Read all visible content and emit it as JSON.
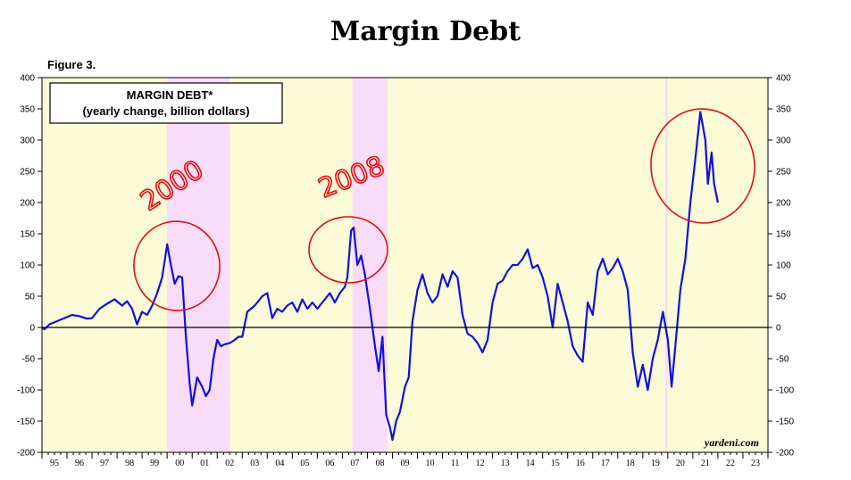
{
  "title": "Margin Debt",
  "figure_label": "Figure 3.",
  "legend": {
    "line1": "MARGIN DEBT*",
    "line2": "(yearly change, billion dollars)"
  },
  "source": "yardeni.com",
  "annotations": [
    "2000",
    "2008"
  ],
  "colors": {
    "background": "#fbfbd8",
    "recession": "#f9dcf7",
    "line": "#1010e0",
    "annotation": "#e01010"
  },
  "chart_data": {
    "type": "line",
    "title": "MARGIN DEBT*",
    "subtitle": "(yearly change, billion dollars)",
    "xlabel": "",
    "ylabel": "",
    "xlim": [
      1995,
      2024
    ],
    "ylim": [
      -200,
      400
    ],
    "y_ticks": [
      400,
      350,
      300,
      250,
      200,
      150,
      100,
      50,
      0,
      -50,
      -100,
      -150,
      -200
    ],
    "x_tick_labels": [
      "95",
      "96",
      "97",
      "98",
      "99",
      "00",
      "01",
      "02",
      "03",
      "04",
      "05",
      "06",
      "07",
      "08",
      "09",
      "10",
      "11",
      "12",
      "13",
      "14",
      "15",
      "16",
      "17",
      "18",
      "19",
      "20",
      "21",
      "22",
      "23"
    ],
    "recessions": [
      [
        2000.0,
        2002.5
      ],
      [
        2007.4,
        2008.8
      ],
      [
        2019.9,
        2020.0
      ]
    ],
    "series": [
      {
        "values": [
          [
            1995.0,
            0
          ],
          [
            1995.1,
            -3
          ],
          [
            1995.3,
            5
          ],
          [
            1995.6,
            10
          ],
          [
            1995.9,
            15
          ],
          [
            1996.2,
            20
          ],
          [
            1996.5,
            18
          ],
          [
            1996.8,
            14
          ],
          [
            1997.0,
            15
          ],
          [
            1997.3,
            30
          ],
          [
            1997.6,
            38
          ],
          [
            1997.9,
            45
          ],
          [
            1998.2,
            35
          ],
          [
            1998.4,
            42
          ],
          [
            1998.6,
            30
          ],
          [
            1998.8,
            5
          ],
          [
            1999.0,
            25
          ],
          [
            1999.2,
            20
          ],
          [
            1999.4,
            35
          ],
          [
            1999.6,
            55
          ],
          [
            1999.8,
            80
          ],
          [
            2000.0,
            133
          ],
          [
            2000.15,
            100
          ],
          [
            2000.3,
            70
          ],
          [
            2000.45,
            82
          ],
          [
            2000.6,
            80
          ],
          [
            2000.75,
            -15
          ],
          [
            2000.9,
            -90
          ],
          [
            2001.0,
            -125
          ],
          [
            2001.2,
            -80
          ],
          [
            2001.4,
            -95
          ],
          [
            2001.55,
            -110
          ],
          [
            2001.7,
            -100
          ],
          [
            2001.85,
            -50
          ],
          [
            2002.0,
            -20
          ],
          [
            2002.15,
            -30
          ],
          [
            2002.3,
            -27
          ],
          [
            2002.5,
            -25
          ],
          [
            2002.7,
            -20
          ],
          [
            2002.85,
            -15
          ],
          [
            2003.0,
            -15
          ],
          [
            2003.2,
            25
          ],
          [
            2003.5,
            35
          ],
          [
            2003.8,
            50
          ],
          [
            2004.0,
            55
          ],
          [
            2004.2,
            15
          ],
          [
            2004.4,
            30
          ],
          [
            2004.6,
            25
          ],
          [
            2004.8,
            35
          ],
          [
            2005.0,
            40
          ],
          [
            2005.2,
            25
          ],
          [
            2005.4,
            45
          ],
          [
            2005.6,
            30
          ],
          [
            2005.8,
            40
          ],
          [
            2006.0,
            30
          ],
          [
            2006.3,
            45
          ],
          [
            2006.5,
            55
          ],
          [
            2006.7,
            40
          ],
          [
            2006.9,
            55
          ],
          [
            2007.1,
            65
          ],
          [
            2007.2,
            80
          ],
          [
            2007.35,
            155
          ],
          [
            2007.45,
            160
          ],
          [
            2007.6,
            100
          ],
          [
            2007.75,
            115
          ],
          [
            2007.9,
            85
          ],
          [
            2008.1,
            30
          ],
          [
            2008.3,
            -30
          ],
          [
            2008.45,
            -70
          ],
          [
            2008.6,
            -15
          ],
          [
            2008.75,
            -140
          ],
          [
            2008.9,
            -160
          ],
          [
            2009.0,
            -180
          ],
          [
            2009.15,
            -150
          ],
          [
            2009.3,
            -135
          ],
          [
            2009.5,
            -95
          ],
          [
            2009.65,
            -80
          ],
          [
            2009.8,
            10
          ],
          [
            2010.0,
            60
          ],
          [
            2010.2,
            85
          ],
          [
            2010.4,
            55
          ],
          [
            2010.6,
            40
          ],
          [
            2010.8,
            50
          ],
          [
            2011.0,
            85
          ],
          [
            2011.2,
            65
          ],
          [
            2011.4,
            90
          ],
          [
            2011.6,
            80
          ],
          [
            2011.8,
            20
          ],
          [
            2012.0,
            -10
          ],
          [
            2012.2,
            -15
          ],
          [
            2012.4,
            -25
          ],
          [
            2012.6,
            -40
          ],
          [
            2012.8,
            -20
          ],
          [
            2013.0,
            40
          ],
          [
            2013.2,
            70
          ],
          [
            2013.4,
            75
          ],
          [
            2013.6,
            90
          ],
          [
            2013.8,
            100
          ],
          [
            2014.0,
            100
          ],
          [
            2014.2,
            110
          ],
          [
            2014.4,
            125
          ],
          [
            2014.6,
            95
          ],
          [
            2014.8,
            100
          ],
          [
            2015.0,
            80
          ],
          [
            2015.2,
            50
          ],
          [
            2015.4,
            0
          ],
          [
            2015.6,
            70
          ],
          [
            2015.8,
            40
          ],
          [
            2016.0,
            10
          ],
          [
            2016.2,
            -30
          ],
          [
            2016.4,
            -45
          ],
          [
            2016.6,
            -55
          ],
          [
            2016.8,
            40
          ],
          [
            2017.0,
            20
          ],
          [
            2017.2,
            90
          ],
          [
            2017.4,
            110
          ],
          [
            2017.6,
            85
          ],
          [
            2017.8,
            95
          ],
          [
            2018.0,
            110
          ],
          [
            2018.2,
            90
          ],
          [
            2018.4,
            60
          ],
          [
            2018.6,
            -40
          ],
          [
            2018.8,
            -95
          ],
          [
            2019.0,
            -60
          ],
          [
            2019.2,
            -100
          ],
          [
            2019.4,
            -50
          ],
          [
            2019.6,
            -20
          ],
          [
            2019.8,
            25
          ],
          [
            2020.0,
            -20
          ],
          [
            2020.15,
            -95
          ],
          [
            2020.3,
            -30
          ],
          [
            2020.5,
            60
          ],
          [
            2020.7,
            110
          ],
          [
            2020.9,
            200
          ],
          [
            2021.1,
            270
          ],
          [
            2021.3,
            345
          ],
          [
            2021.5,
            300
          ],
          [
            2021.6,
            230
          ],
          [
            2021.75,
            280
          ],
          [
            2021.85,
            230
          ],
          [
            2022.0,
            200
          ]
        ]
      }
    ]
  }
}
